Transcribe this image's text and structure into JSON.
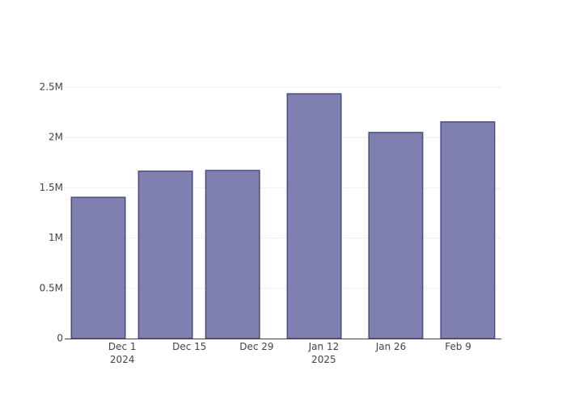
{
  "chart_data": {
    "type": "bar",
    "x": [
      "2024-11-26",
      "2024-12-10",
      "2024-12-24",
      "2025-01-10",
      "2025-01-27",
      "2025-02-11"
    ],
    "values": [
      1405000,
      1665000,
      1672000,
      2435000,
      2050000,
      2155000
    ],
    "color": "#7f7fb0",
    "edge_color": "#4a4a82",
    "xlim": [
      "2024-11-19",
      "2025-02-18"
    ],
    "xticks": [
      {
        "value": "2024-12-01",
        "label": "Dec 1\n2024"
      },
      {
        "value": "2024-12-15",
        "label": "Dec 15"
      },
      {
        "value": "2024-12-29",
        "label": "Dec 29"
      },
      {
        "value": "2025-01-12",
        "label": "Jan 12\n2025"
      },
      {
        "value": "2025-01-26",
        "label": "Jan 26"
      },
      {
        "value": "2025-02-09",
        "label": "Feb 9"
      }
    ],
    "ylim": [
      0,
      2725000
    ],
    "yticks": [
      0,
      {
        "value": 500000,
        "label": "0.5M"
      },
      {
        "value": 1000000,
        "label": "1M"
      },
      {
        "value": 1500000,
        "label": "1.5M"
      },
      {
        "value": 2000000,
        "label": "2M"
      },
      {
        "value": 2500000,
        "label": "2.5M"
      }
    ],
    "grid": true
  }
}
